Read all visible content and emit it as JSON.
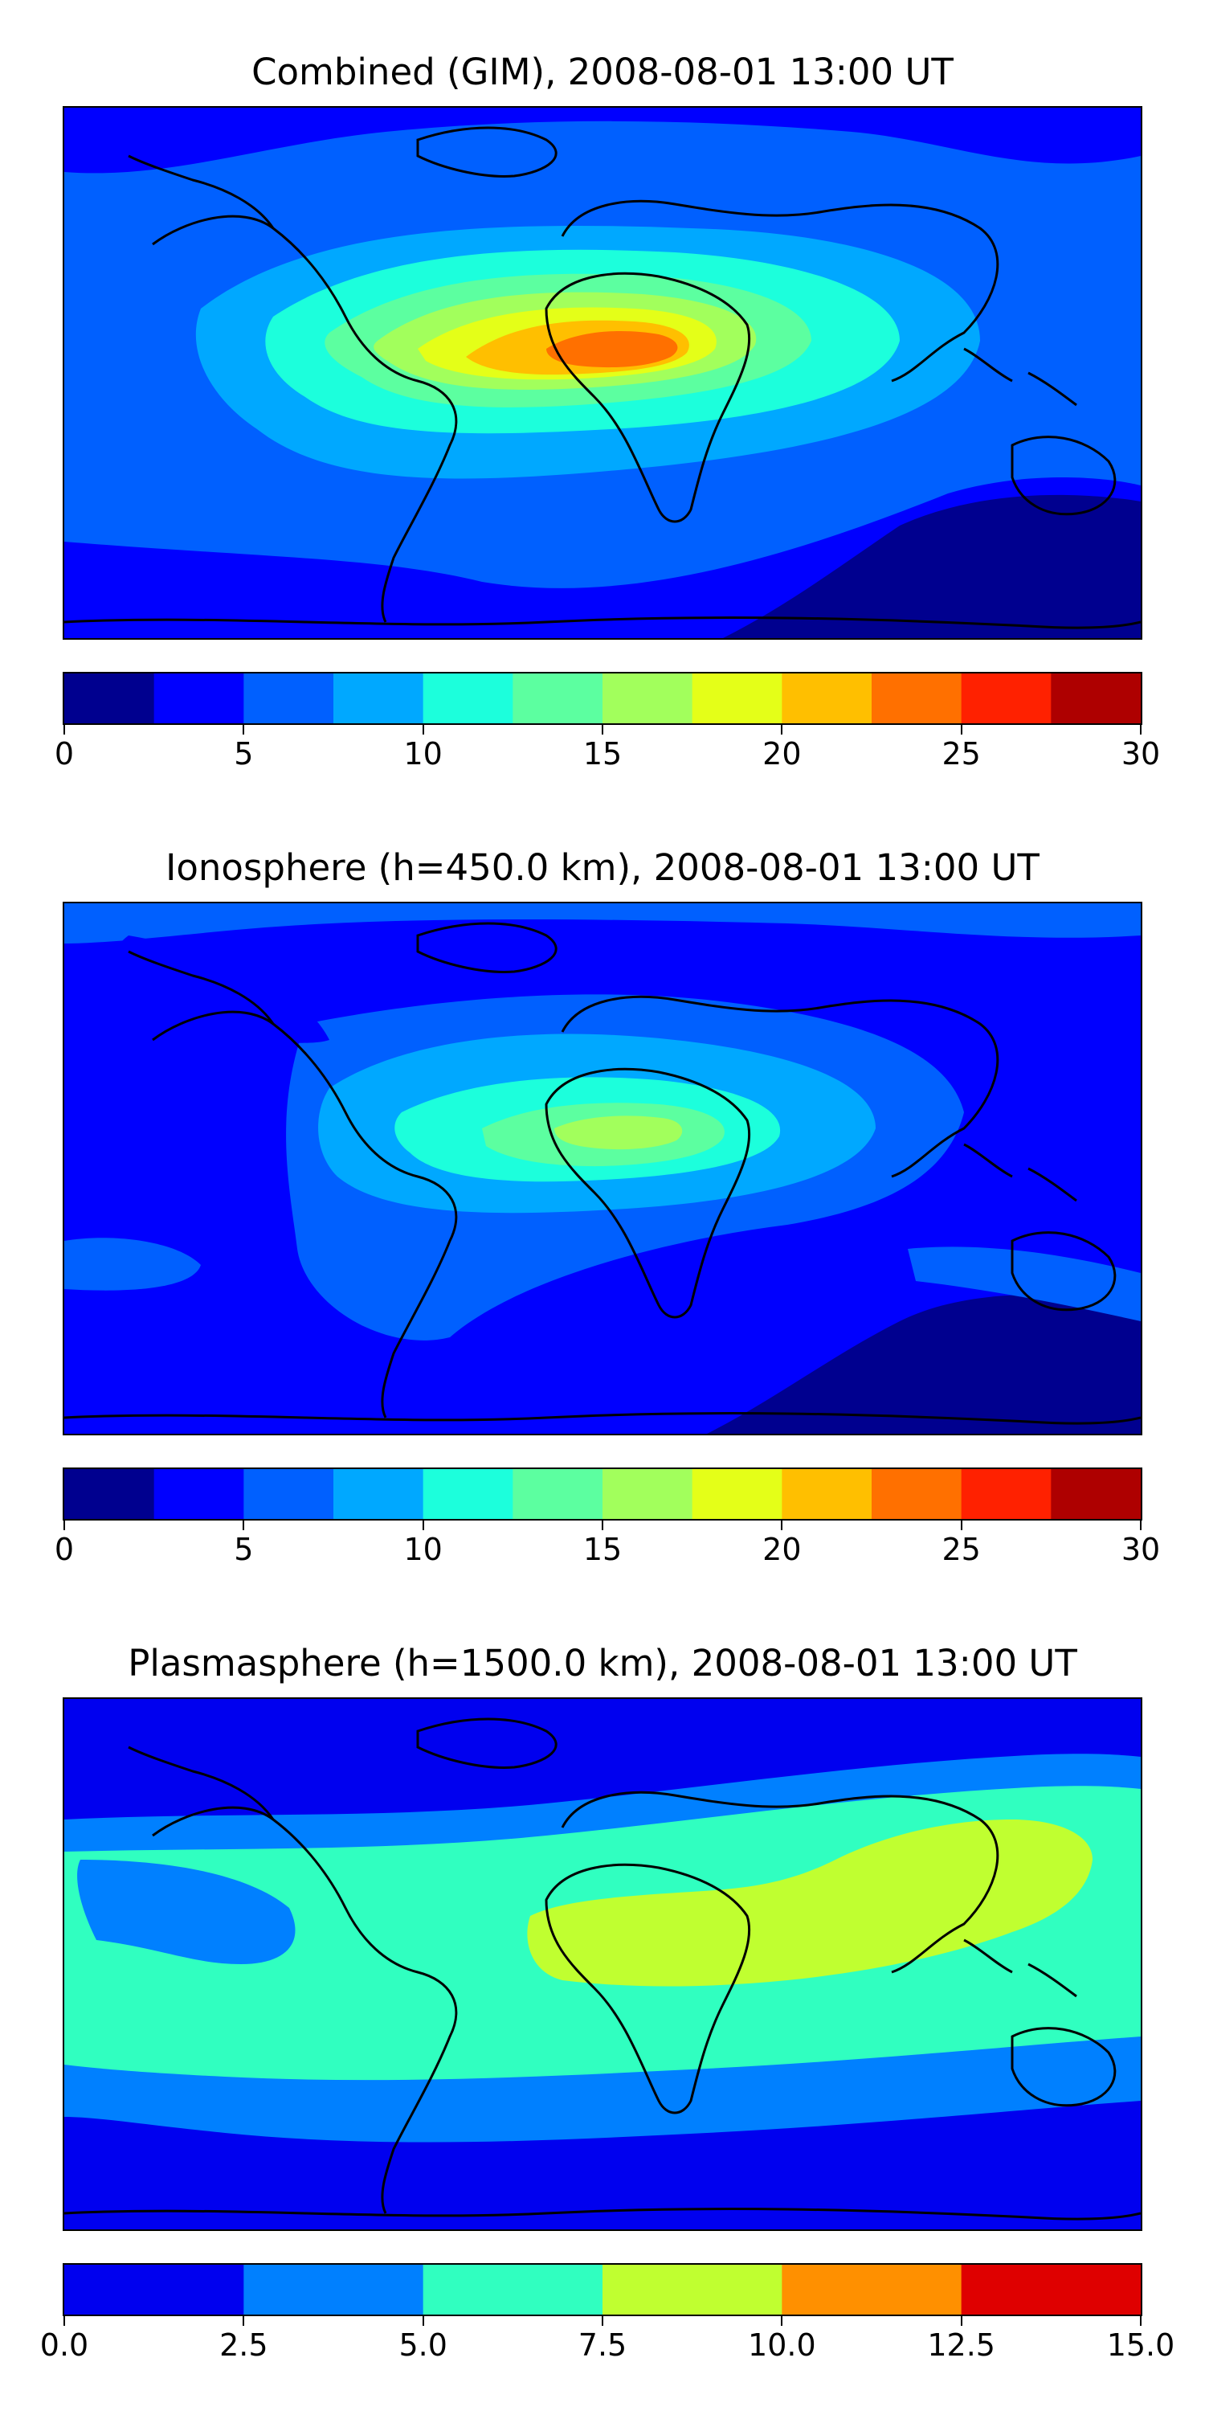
{
  "panels": [
    {
      "title": "Combined (GIM), 2008-08-01 13:00 UT",
      "colorbar": {
        "ticks": [
          "0",
          "5",
          "10",
          "15",
          "20",
          "25",
          "30"
        ],
        "tick_values": [
          0,
          5,
          10,
          15,
          20,
          25,
          30
        ],
        "range": [
          0,
          30
        ],
        "colors": [
          "#00008f",
          "#0000ff",
          "#0060ff",
          "#00a8ff",
          "#1cffdc",
          "#5cffa0",
          "#a2ff5c",
          "#e4ff18",
          "#ffbf00",
          "#ff7000",
          "#ff2100",
          "#ae0000"
        ]
      }
    },
    {
      "title": "Ionosphere  (h=450.0 km), 2008-08-01 13:00 UT",
      "colorbar": {
        "ticks": [
          "0",
          "5",
          "10",
          "15",
          "20",
          "25",
          "30"
        ],
        "tick_values": [
          0,
          5,
          10,
          15,
          20,
          25,
          30
        ],
        "range": [
          0,
          30
        ],
        "colors": [
          "#00008f",
          "#0000ff",
          "#0060ff",
          "#00a8ff",
          "#1cffdc",
          "#5cffa0",
          "#a2ff5c",
          "#e4ff18",
          "#ffbf00",
          "#ff7000",
          "#ff2100",
          "#ae0000"
        ]
      }
    },
    {
      "title": "Plasmasphere (h=1500.0 km), 2008-08-01 13:00 UT",
      "colorbar": {
        "ticks": [
          "0.0",
          "2.5",
          "5.0",
          "7.5",
          "10.0",
          "12.5",
          "15.0"
        ],
        "tick_values": [
          0,
          2.5,
          5,
          7.5,
          10,
          12.5,
          15
        ],
        "range": [
          0,
          15
        ],
        "colors": [
          "#0000ef",
          "#0080ff",
          "#30ffc0",
          "#c0ff30",
          "#ff9000",
          "#df0000"
        ]
      }
    }
  ]
}
